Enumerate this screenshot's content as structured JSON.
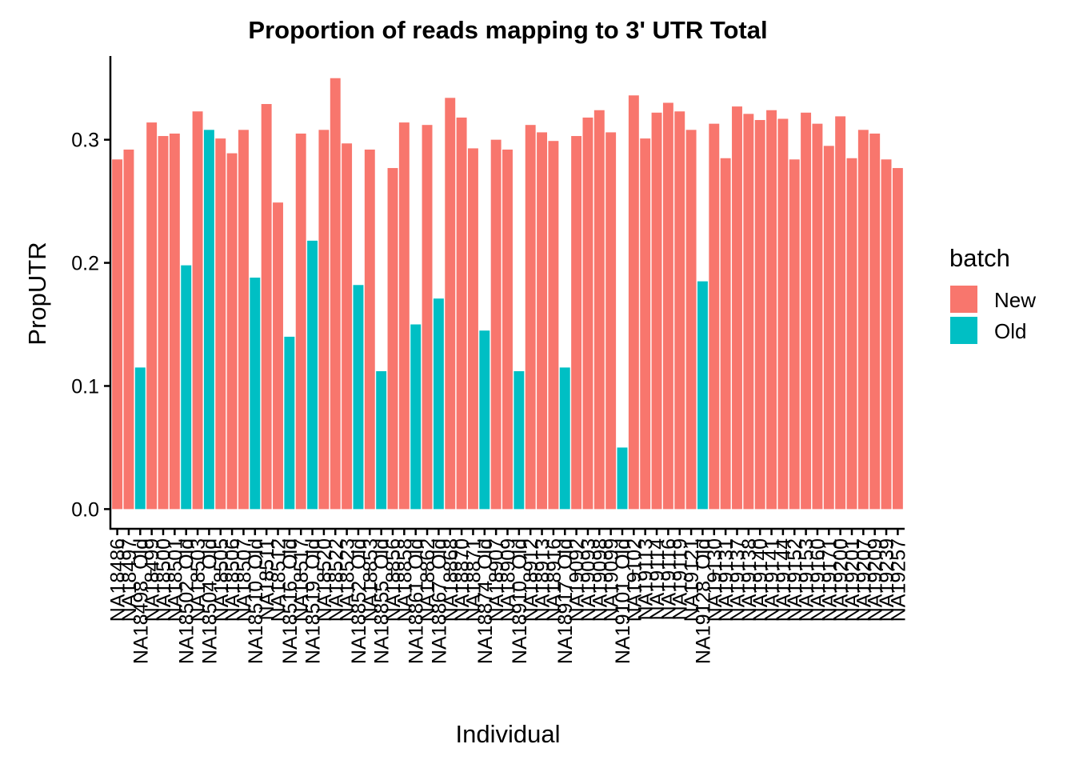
{
  "chart_data": {
    "type": "bar",
    "title": "Proportion of reads mapping to 3' UTR Total",
    "x_label": "Individual",
    "y_label": "PropUTR",
    "legend_title": "batch",
    "legend_position": "right",
    "categories": [
      "NA18486",
      "NA18497",
      "NA18498_Old",
      "NA18499",
      "NA18500",
      "NA18501",
      "NA18502_Old",
      "NA18503",
      "NA18504_Old",
      "NA18505",
      "NA18506",
      "NA18507",
      "NA18510_Old",
      "NA18511",
      "NA18512",
      "NA18516_Old",
      "NA18517",
      "NA18519_Old",
      "NA18520",
      "NA18522",
      "NA18523",
      "NA18852_Old",
      "NA18853",
      "NA18855_Old",
      "NA18856",
      "NA18858",
      "NA18861_Old",
      "NA18862",
      "NA18867_Old",
      "NA18868",
      "NA18870",
      "NA18871",
      "NA18874_Old",
      "NA18907",
      "NA18909",
      "NA18910_Old",
      "NA18912",
      "NA18913",
      "NA18916",
      "NA18917_Old",
      "NA19092",
      "NA19093",
      "NA19098",
      "NA19099",
      "NA19101_Old",
      "NA19102",
      "NA19113",
      "NA19114",
      "NA19116",
      "NA19119",
      "NA19121",
      "NA19128_Old",
      "NA19130",
      "NA19131",
      "NA19137",
      "NA19138",
      "NA19140",
      "NA19141",
      "NA19144",
      "NA19152",
      "NA19153",
      "NA19160",
      "NA19171",
      "NA19200",
      "NA19201",
      "NA19207",
      "NA19209",
      "NA19239",
      "NA19257"
    ],
    "series": [
      {
        "name": "New",
        "color": "#F8766D",
        "values": [
          0.284,
          0.292,
          null,
          0.314,
          0.303,
          0.305,
          null,
          0.323,
          null,
          0.301,
          0.289,
          0.308,
          null,
          0.329,
          0.249,
          null,
          0.305,
          null,
          0.308,
          0.35,
          0.297,
          null,
          0.292,
          null,
          0.277,
          0.314,
          null,
          0.312,
          null,
          0.334,
          0.318,
          0.293,
          null,
          0.3,
          0.292,
          null,
          0.312,
          0.306,
          0.299,
          null,
          0.303,
          0.318,
          0.324,
          0.306,
          null,
          0.336,
          0.301,
          0.322,
          0.33,
          0.323,
          0.308,
          null,
          0.313,
          0.285,
          0.327,
          0.321,
          0.316,
          0.324,
          0.317,
          0.284,
          0.322,
          0.313,
          0.295,
          0.319,
          0.285,
          0.308,
          0.305,
          0.284,
          0.277
        ]
      },
      {
        "name": "Old",
        "color": "#00BFC4",
        "values": [
          null,
          null,
          0.115,
          null,
          null,
          null,
          0.198,
          null,
          0.308,
          null,
          null,
          null,
          0.188,
          null,
          null,
          0.14,
          null,
          0.218,
          null,
          null,
          null,
          0.182,
          null,
          0.112,
          null,
          null,
          0.15,
          null,
          0.171,
          null,
          null,
          null,
          0.145,
          null,
          null,
          0.112,
          null,
          null,
          null,
          0.115,
          null,
          null,
          null,
          null,
          0.05,
          null,
          null,
          null,
          null,
          null,
          null,
          0.185,
          null,
          null,
          null,
          null,
          null,
          null,
          null,
          null,
          null,
          null,
          null,
          null,
          null,
          null,
          null,
          null,
          null
        ]
      }
    ],
    "ylim": [
      -0.016,
      0.368
    ],
    "yticks": [
      {
        "value": 0,
        "label": "0.0"
      },
      0.1,
      0.2,
      0.3
    ],
    "grid": false
  }
}
